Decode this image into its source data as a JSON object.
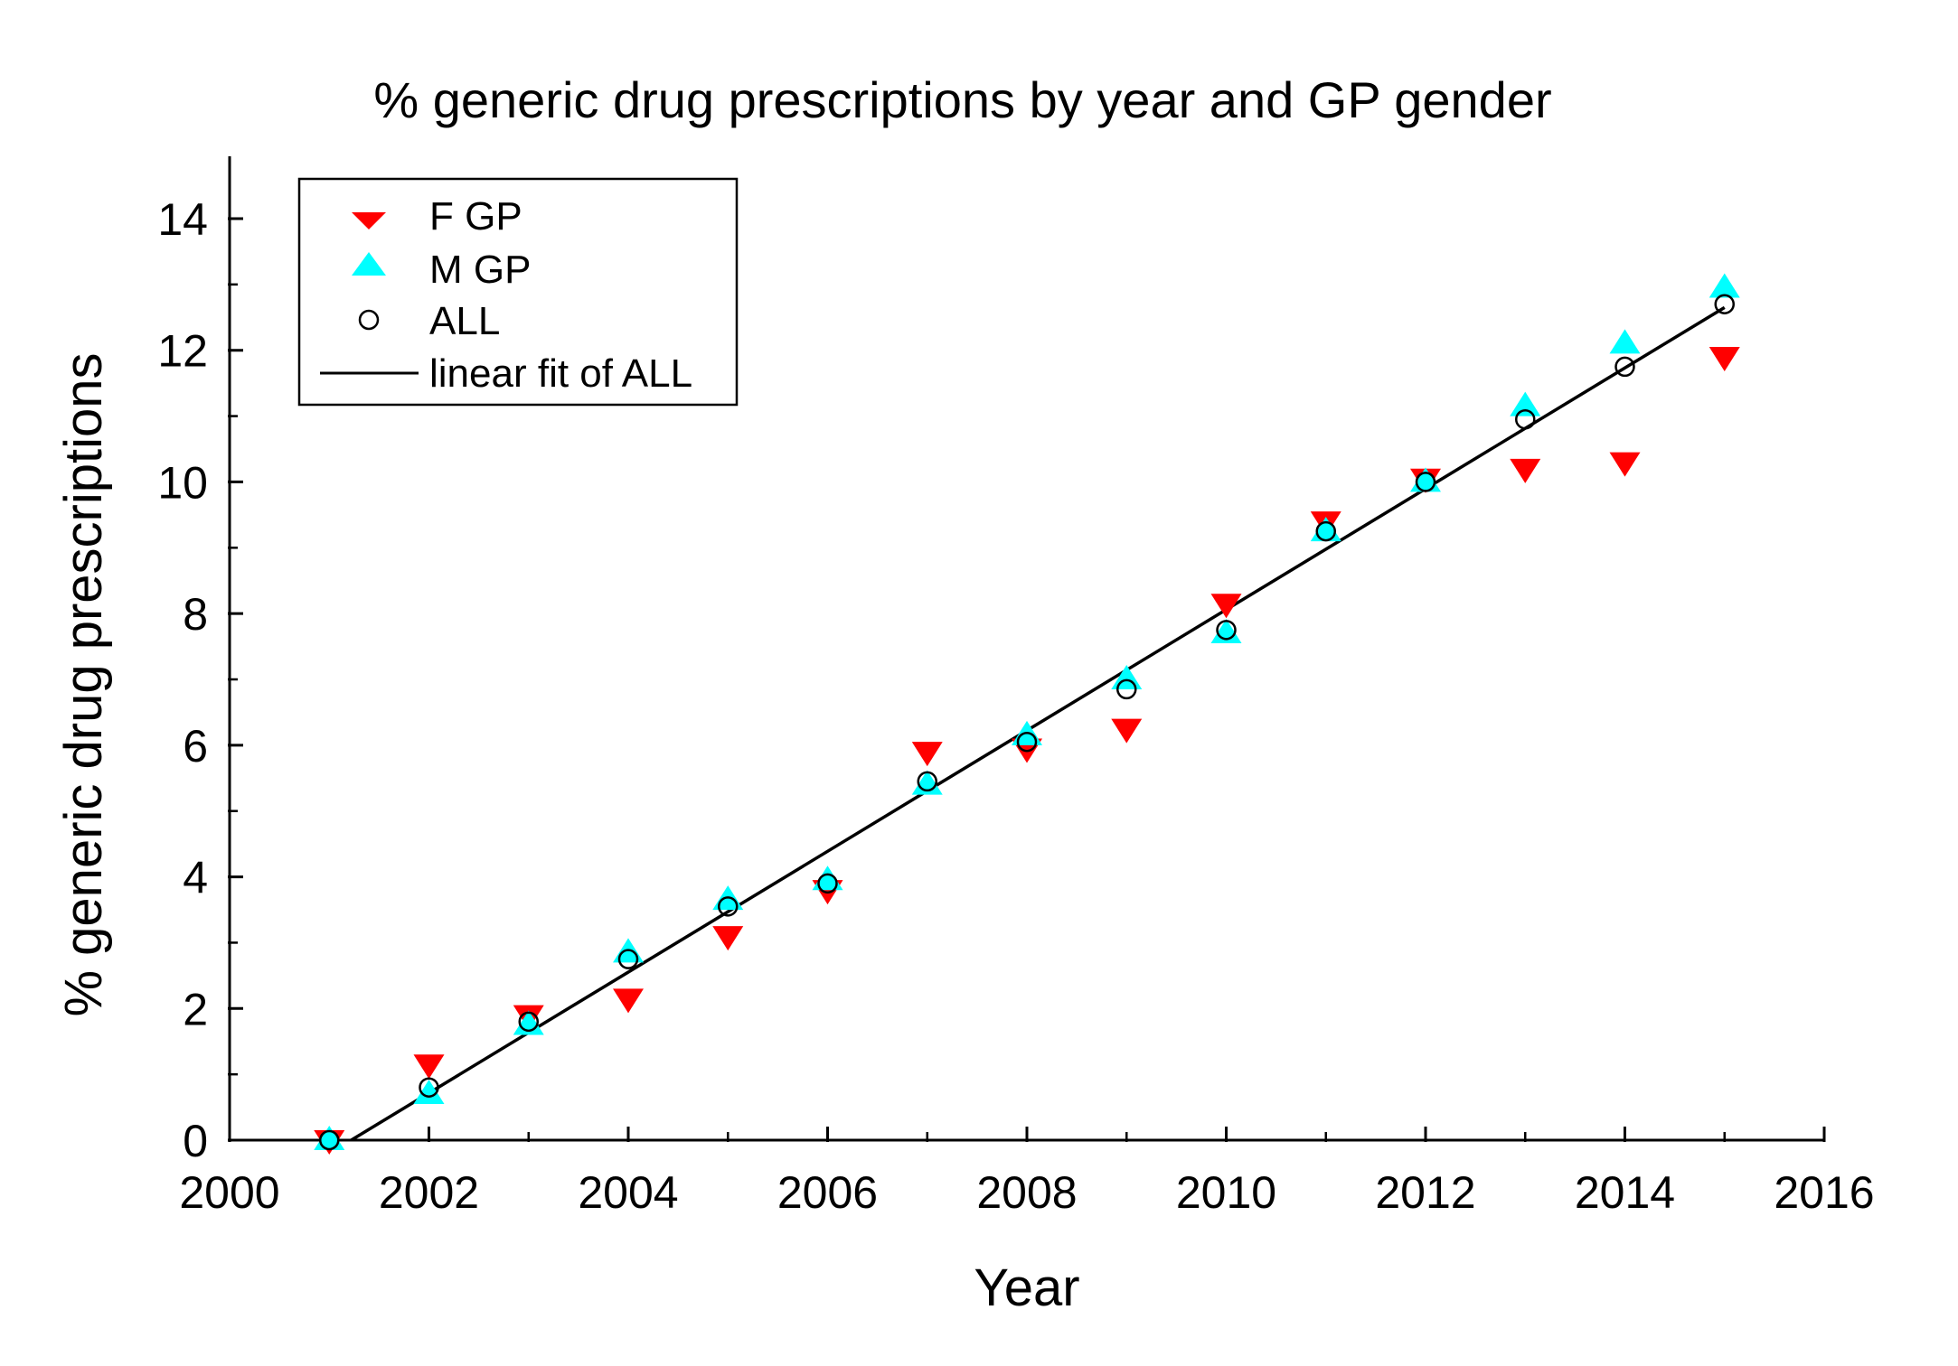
{
  "chart_data": {
    "type": "scatter",
    "title": "% generic drug prescriptions by year and GP gender",
    "xlabel": "Year",
    "ylabel": "% generic drug prescriptions",
    "xlim": [
      2000,
      2016
    ],
    "ylim": [
      0,
      15
    ],
    "x_ticks": [
      2000,
      2002,
      2004,
      2006,
      2008,
      2010,
      2012,
      2014,
      2016
    ],
    "y_ticks": [
      0,
      2,
      4,
      6,
      8,
      10,
      12,
      14
    ],
    "x": [
      2001,
      2002,
      2003,
      2004,
      2005,
      2006,
      2007,
      2008,
      2009,
      2010,
      2011,
      2012,
      2013,
      2014,
      2015
    ],
    "legend_position": "top-left",
    "series": [
      {
        "name": "F GP",
        "marker": "triangle-down",
        "color": "#ff0000",
        "values": [
          0.0,
          1.15,
          1.9,
          2.15,
          3.1,
          3.8,
          5.9,
          5.95,
          6.25,
          8.15,
          9.4,
          10.05,
          10.2,
          10.3,
          11.9
        ]
      },
      {
        "name": "M GP",
        "marker": "triangle-up",
        "color": "#00ffff",
        "values": [
          0.0,
          0.7,
          1.75,
          2.85,
          3.65,
          3.95,
          5.4,
          6.15,
          7.0,
          7.7,
          9.25,
          10.0,
          11.15,
          12.1,
          12.95
        ]
      },
      {
        "name": "ALL",
        "marker": "circle-open",
        "color": "#000000",
        "values": [
          0.0,
          0.8,
          1.8,
          2.75,
          3.55,
          3.9,
          5.45,
          6.05,
          6.85,
          7.75,
          9.25,
          10.0,
          10.95,
          11.75,
          12.7
        ]
      },
      {
        "name": "linear fit of ALL",
        "marker": "line",
        "color": "#000000",
        "fit_x": [
          2001.22,
          2015
        ],
        "fit_y": [
          0,
          12.65
        ]
      }
    ]
  }
}
